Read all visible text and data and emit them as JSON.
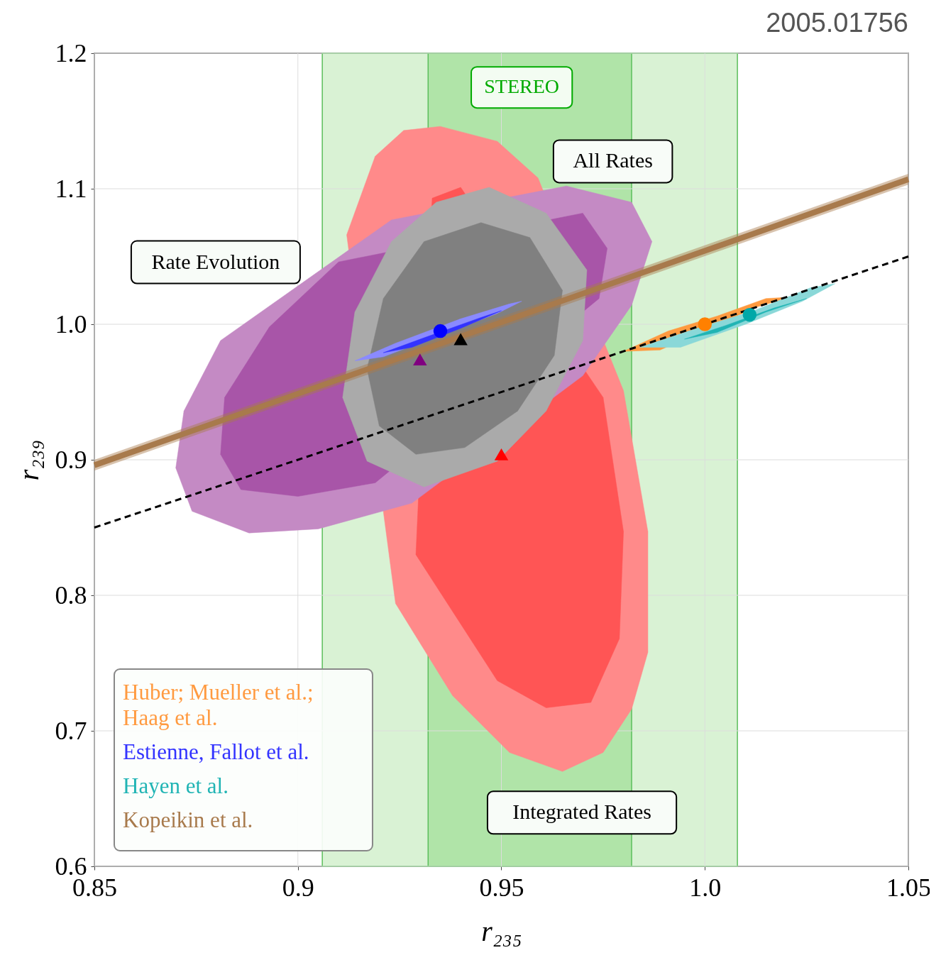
{
  "chart_data": {
    "type": "area",
    "xlabel": "r₂₃₅",
    "ylabel": "r₂₃₉",
    "xlim": [
      0.85,
      1.05
    ],
    "xticks": [
      0.85,
      0.9,
      0.95,
      {
        "value": 1,
        "label": "1.0"
      },
      1.05
    ],
    "ylim": [
      0.6,
      1.2
    ],
    "yticks": [
      0.6,
      0.7,
      0.8,
      0.9,
      {
        "value": 1,
        "label": "1.0"
      },
      1.1,
      1.2
    ],
    "grid": true,
    "legend": "bottom left",
    "bands": [
      {
        "axis": "x",
        "from": 0.906,
        "to": 1.008,
        "color": "#d9f2d4"
      },
      {
        "axis": "x",
        "from": 0.932,
        "to": 0.982,
        "color": "#b0e4a8"
      }
    ],
    "series": [
      {
        "type": "area",
        "color": "#ff8a8a",
        "x": [
          0.935,
          0.949,
          0.959,
          0.98,
          0.986,
          0.986,
          0.982,
          0.975,
          0.965,
          0.952,
          0.938,
          0.924,
          0.912,
          0.919,
          0.926
        ],
        "values": [
          1.146,
          1.135,
          1.108,
          0.951,
          0.847,
          0.758,
          0.716,
          0.684,
          0.67,
          0.684,
          0.726,
          0.794,
          1.066,
          1.124,
          1.143
        ]
      },
      {
        "type": "area",
        "color": "#ff5555",
        "x": [
          0.94,
          0.975,
          0.98,
          0.979,
          0.972,
          0.961,
          0.949,
          0.929,
          0.933
        ],
        "values": [
          1.101,
          0.946,
          0.847,
          0.768,
          0.721,
          0.717,
          0.737,
          0.83,
          1.093
        ]
      },
      {
        "type": "area",
        "color": "#c48ac4",
        "x": [
          0.87,
          0.874,
          0.888,
          0.905,
          0.928,
          0.97,
          0.982,
          0.987,
          0.982,
          0.966,
          0.923,
          0.881,
          0.872
        ],
        "values": [
          0.894,
          0.862,
          0.846,
          0.849,
          0.868,
          0.962,
          1.014,
          1.061,
          1.09,
          1.102,
          1.077,
          0.988,
          0.936
        ]
      },
      {
        "type": "area",
        "color": "#a855a8",
        "x": [
          0.881,
          0.886,
          0.9,
          0.919,
          0.974,
          0.976,
          0.97,
          0.91,
          0.893,
          0.882
        ],
        "values": [
          0.904,
          0.878,
          0.873,
          0.883,
          1.019,
          1.056,
          1.082,
          1.046,
          0.998,
          0.946
        ]
      },
      {
        "type": "area",
        "color": "#aaaaaa",
        "x": [
          0.947,
          0.961,
          0.971,
          0.97,
          0.961,
          0.949,
          0.931,
          0.917,
          0.911,
          0.914,
          0.923,
          0.934
        ],
        "values": [
          1.101,
          1.082,
          1.04,
          0.988,
          0.936,
          0.899,
          0.88,
          0.899,
          0.946,
          1.009,
          1.061,
          1.09
        ]
      },
      {
        "type": "area",
        "color": "#808080",
        "x": [
          0.945,
          0.957,
          0.965,
          0.963,
          0.954,
          0.941,
          0.929,
          0.92,
          0.917,
          0.921,
          0.931
        ],
        "values": [
          1.075,
          1.064,
          1.025,
          0.977,
          0.936,
          0.909,
          0.904,
          0.925,
          0.967,
          1.019,
          1.061
        ]
      },
      {
        "type": "area",
        "name": "Huber; Mueller et al.; Haag et al.",
        "color": "#ff9a40",
        "x": [
          0.98,
          0.991,
          1.003,
          1.015,
          1.021,
          1.013,
          0.989
        ],
        "values": [
          0.98,
          0.995,
          1.006,
          1.019,
          1.02,
          1.013,
          0.981
        ]
      },
      {
        "type": "area",
        "color": "#8a8aff",
        "x": [
          0.914,
          0.924,
          0.94,
          0.952,
          0.955,
          0.949,
          0.921
        ],
        "values": [
          0.973,
          0.986,
          1.004,
          1.015,
          1.017,
          1.008,
          0.976
        ]
      },
      {
        "type": "area",
        "name": "Estienne, Fallot et al.",
        "color": "#3333ff",
        "x": [
          0.921,
          0.931,
          0.945,
          0.95,
          0.94,
          0.928
        ],
        "values": [
          0.979,
          0.99,
          1.005,
          1.01,
          0.997,
          0.983
        ]
      },
      {
        "type": "area",
        "color": "#8ad8d8",
        "x": [
          0.984,
          0.998,
          1.012,
          1.026,
          1.032,
          1.024,
          1.01,
          0.994
        ],
        "values": [
          0.983,
          0.997,
          1.01,
          1.027,
          1.03,
          1.017,
          1.0,
          0.983
        ]
      },
      {
        "type": "area",
        "name": "Hayen et al.",
        "color": "#20b4b4",
        "x": [
          0.995,
          1.005,
          1.017,
          1.025,
          1.015,
          1.003
        ],
        "values": [
          0.989,
          0.999,
          1.012,
          1.019,
          1.009,
          0.994
        ]
      },
      {
        "type": "line",
        "name": "Kopeikin et al.",
        "color": "#a87a4c",
        "x": [
          0.85,
          1.05
        ],
        "values": [
          0.896,
          1.107
        ],
        "lower": [
          0.892,
          1.103
        ],
        "upper": [
          0.9,
          1.111
        ]
      },
      {
        "type": "line",
        "color": "#000000",
        "line_style": "dashed",
        "x": [
          0.85,
          1.05
        ],
        "values": [
          0.85,
          1.05
        ]
      },
      {
        "type": "scatter",
        "color": "#0000ff",
        "marker": "circle",
        "x": [
          0.935
        ],
        "values": [
          0.995
        ]
      },
      {
        "type": "scatter",
        "color": "#000000",
        "marker": "triangle",
        "x": [
          0.94
        ],
        "values": [
          0.989
        ]
      },
      {
        "type": "scatter",
        "color": "#800080",
        "marker": "triangle",
        "x": [
          0.93
        ],
        "values": [
          0.974
        ]
      },
      {
        "type": "scatter",
        "color": "#ff0000",
        "marker": "triangle",
        "x": [
          0.95
        ],
        "values": [
          0.904
        ]
      },
      {
        "type": "scatter",
        "color": "#ff8000",
        "marker": "circle",
        "x": [
          1.0
        ],
        "values": [
          1.0
        ]
      },
      {
        "type": "scatter",
        "color": "#00a8a8",
        "marker": "circle",
        "x": [
          1.011
        ],
        "values": [
          1.007
        ]
      }
    ],
    "annotations": [
      "STEREO",
      "Integrated Rates",
      "Rate Evolution",
      "All Rates",
      "2005.01756"
    ]
  }
}
